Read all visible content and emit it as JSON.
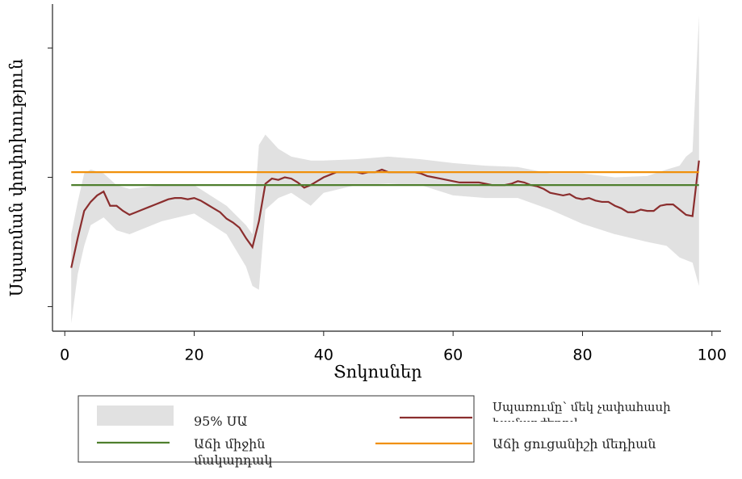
{
  "chart_data": {
    "type": "line",
    "x_label": "Տոկոսներ",
    "y_label": "Սպառման փոփոխություն",
    "xlim": [
      -1.9,
      101.4
    ],
    "xticks": [
      0,
      20,
      40,
      60,
      80,
      100
    ],
    "ylim": [
      -0.19,
      2.34
    ],
    "yticks": [
      0,
      1,
      2
    ],
    "series": [
      {
        "name": "95% ՍԱ",
        "type": "band",
        "color": "#e1e1e1",
        "x": [
          1,
          2,
          3,
          4,
          6,
          8,
          10,
          15,
          20,
          25,
          28,
          29,
          30,
          31,
          33,
          35,
          38,
          40,
          45,
          50,
          55,
          60,
          65,
          70,
          75,
          80,
          85,
          90,
          93,
          95,
          96,
          97,
          98
        ],
        "upper": [
          0.56,
          0.81,
          1.03,
          1.06,
          1.03,
          0.94,
          0.91,
          0.94,
          0.94,
          0.78,
          0.63,
          0.56,
          1.25,
          1.33,
          1.22,
          1.16,
          1.13,
          1.13,
          1.14,
          1.16,
          1.14,
          1.11,
          1.09,
          1.08,
          1.03,
          1.03,
          1.0,
          1.01,
          1.06,
          1.09,
          1.16,
          1.2,
          2.25
        ],
        "lower": [
          -0.13,
          0.25,
          0.47,
          0.63,
          0.69,
          0.59,
          0.56,
          0.66,
          0.72,
          0.56,
          0.31,
          0.16,
          0.13,
          0.75,
          0.84,
          0.88,
          0.78,
          0.88,
          0.94,
          0.95,
          0.94,
          0.86,
          0.84,
          0.84,
          0.75,
          0.64,
          0.56,
          0.5,
          0.47,
          0.38,
          0.36,
          0.34,
          0.16
        ]
      },
      {
        "name": "Սպառումը՝ մեկ չափահասի համարժեքով",
        "color": "#8b2e2e",
        "x": [
          1,
          2,
          3,
          4,
          5,
          6,
          7,
          8,
          9,
          10,
          11,
          12,
          13,
          14,
          15,
          16,
          17,
          18,
          19,
          20,
          21,
          22,
          23,
          24,
          25,
          26,
          27,
          28,
          29,
          30,
          31,
          32,
          33,
          34,
          35,
          36,
          37,
          38,
          39,
          40,
          41,
          42,
          43,
          44,
          45,
          46,
          47,
          48,
          49,
          50,
          51,
          52,
          53,
          54,
          55,
          56,
          57,
          58,
          59,
          60,
          61,
          62,
          63,
          64,
          65,
          66,
          67,
          68,
          69,
          70,
          71,
          72,
          73,
          74,
          75,
          76,
          77,
          78,
          79,
          80,
          81,
          82,
          83,
          84,
          85,
          86,
          87,
          88,
          89,
          90,
          91,
          92,
          93,
          94,
          95,
          96,
          97,
          98
        ],
        "values": [
          0.3,
          0.53,
          0.74,
          0.81,
          0.86,
          0.89,
          0.78,
          0.78,
          0.74,
          0.71,
          0.73,
          0.75,
          0.77,
          0.79,
          0.81,
          0.83,
          0.84,
          0.84,
          0.83,
          0.84,
          0.82,
          0.79,
          0.76,
          0.73,
          0.68,
          0.65,
          0.61,
          0.53,
          0.46,
          0.66,
          0.95,
          0.99,
          0.98,
          1.0,
          0.99,
          0.96,
          0.92,
          0.94,
          0.97,
          1.0,
          1.02,
          1.04,
          1.04,
          1.04,
          1.04,
          1.03,
          1.04,
          1.04,
          1.06,
          1.04,
          1.04,
          1.04,
          1.04,
          1.04,
          1.03,
          1.01,
          1.0,
          0.99,
          0.98,
          0.97,
          0.96,
          0.96,
          0.96,
          0.96,
          0.95,
          0.94,
          0.94,
          0.94,
          0.95,
          0.97,
          0.96,
          0.94,
          0.93,
          0.91,
          0.88,
          0.87,
          0.86,
          0.87,
          0.84,
          0.83,
          0.84,
          0.82,
          0.81,
          0.81,
          0.78,
          0.76,
          0.73,
          0.73,
          0.75,
          0.74,
          0.74,
          0.78,
          0.79,
          0.79,
          0.75,
          0.71,
          0.7,
          1.13
        ]
      },
      {
        "name": "Աճի միջին մակարդակ",
        "color": "#4f7f2e",
        "x": [
          1,
          98
        ],
        "values": [
          0.94,
          0.94
        ]
      },
      {
        "name": "Աճի ցուցանիշի մեդիան",
        "color": "#f0900a",
        "x": [
          1,
          98
        ],
        "values": [
          1.04,
          1.04
        ]
      }
    ]
  }
}
